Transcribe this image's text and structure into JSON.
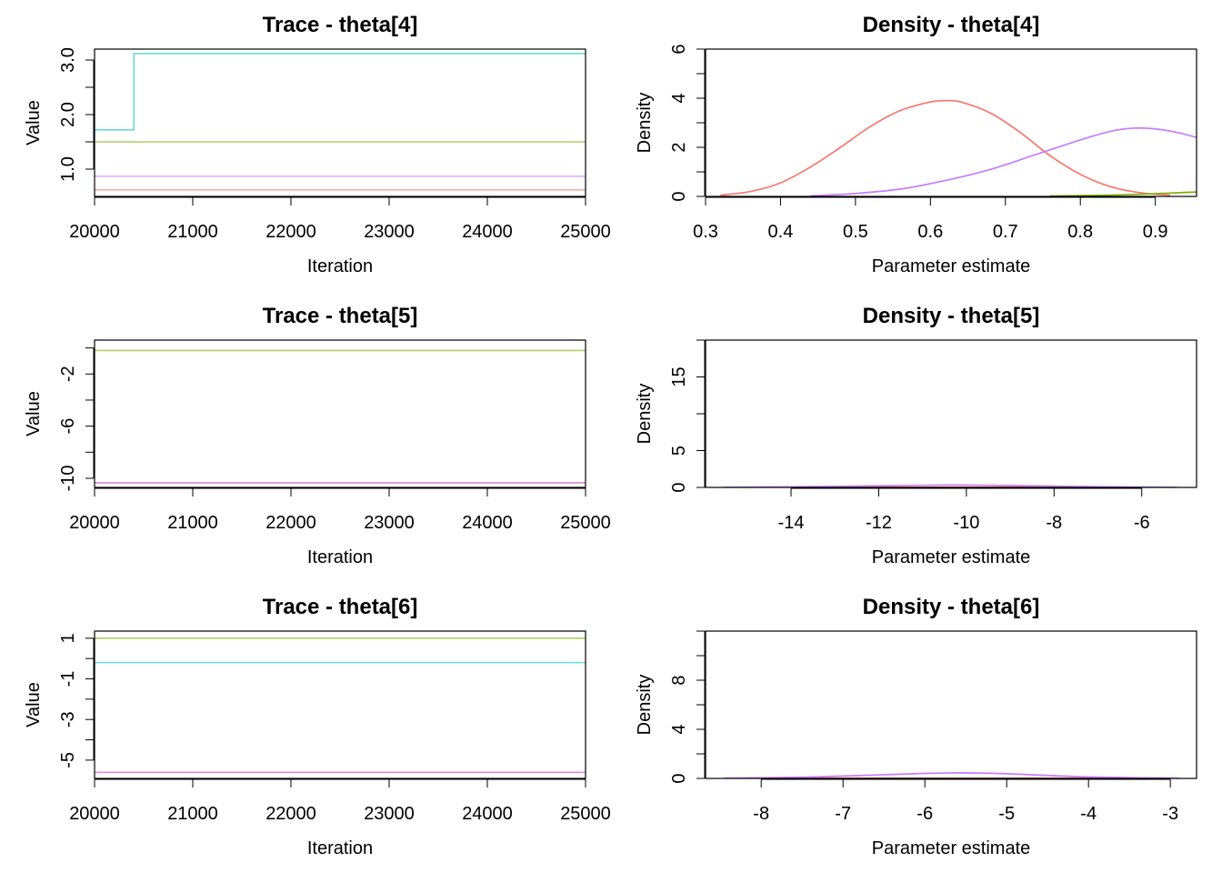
{
  "chart_data": [
    {
      "type": "line",
      "title": "Trace - theta[4]",
      "xlabel": "Iteration",
      "ylabel": "Value",
      "xlim": [
        20000,
        25000
      ],
      "ylim": [
        0.5,
        3.2
      ],
      "xticks": [
        20000,
        21000,
        22000,
        23000,
        24000,
        25000
      ],
      "xticklabels": [
        "20000",
        "21000",
        "22000",
        "23000",
        "24000",
        "25000"
      ],
      "yticks": [
        1.0,
        1.5,
        2.0,
        2.5,
        3.0
      ],
      "yticklabels": [
        "1.0",
        "",
        "2.0",
        "",
        "3.0"
      ],
      "series": [
        {
          "color": "#F8766D",
          "x": [
            20000,
            25000
          ],
          "y": [
            0.62,
            0.62
          ]
        },
        {
          "color": "#C77CFF",
          "x": [
            20000,
            25000
          ],
          "y": [
            0.87,
            0.87
          ]
        },
        {
          "color": "#7CAE00",
          "x": [
            20000,
            25000
          ],
          "y": [
            1.5,
            1.5
          ]
        },
        {
          "color": "#00BFC4",
          "x": [
            20000,
            20400,
            20400,
            25000
          ],
          "y": [
            1.72,
            1.72,
            3.12,
            3.12
          ]
        }
      ]
    },
    {
      "type": "line",
      "title": "Density - theta[4]",
      "xlabel": "Parameter estimate",
      "ylabel": "Density",
      "xlim": [
        0.3,
        0.955
      ],
      "ylim": [
        0,
        6
      ],
      "xticks": [
        0.3,
        0.4,
        0.5,
        0.6,
        0.7,
        0.8,
        0.9
      ],
      "xticklabels": [
        "0.3",
        "0.4",
        "0.5",
        "0.6",
        "0.7",
        "0.8",
        "0.9"
      ],
      "yticks": [
        0,
        1,
        2,
        3,
        4,
        5,
        6
      ],
      "yticklabels": [
        "0",
        "",
        "2",
        "",
        "4",
        "",
        "6"
      ],
      "series": [
        {
          "color": "#F8766D",
          "x": [
            0.32,
            0.36,
            0.4,
            0.44,
            0.48,
            0.52,
            0.56,
            0.6,
            0.62,
            0.64,
            0.68,
            0.72,
            0.76,
            0.8,
            0.84,
            0.88,
            0.92
          ],
          "y": [
            0.05,
            0.2,
            0.55,
            1.2,
            2.0,
            2.85,
            3.5,
            3.85,
            3.9,
            3.85,
            3.4,
            2.6,
            1.65,
            0.9,
            0.4,
            0.15,
            0.05
          ]
        },
        {
          "color": "#C77CFF",
          "x": [
            0.44,
            0.5,
            0.56,
            0.62,
            0.68,
            0.74,
            0.8,
            0.84,
            0.87,
            0.9,
            0.93,
            0.955
          ],
          "y": [
            0.02,
            0.12,
            0.3,
            0.65,
            1.1,
            1.7,
            2.3,
            2.65,
            2.78,
            2.75,
            2.6,
            2.4
          ]
        },
        {
          "color": "#7CAE00",
          "x": [
            0.76,
            0.85,
            0.955
          ],
          "y": [
            0.02,
            0.06,
            0.18
          ]
        }
      ]
    },
    {
      "type": "line",
      "title": "Trace - theta[5]",
      "xlabel": "Iteration",
      "ylabel": "Value",
      "xlim": [
        20000,
        25000
      ],
      "ylim": [
        -10.7,
        0.6
      ],
      "xticks": [
        20000,
        21000,
        22000,
        23000,
        24000,
        25000
      ],
      "xticklabels": [
        "20000",
        "21000",
        "22000",
        "23000",
        "24000",
        "25000"
      ],
      "yticks": [
        -10,
        -8,
        -6,
        -4,
        -2,
        0
      ],
      "yticklabels": [
        "-10",
        "",
        "-6",
        "",
        "-2",
        ""
      ],
      "series": [
        {
          "color": "#F8766D",
          "x": [
            20000,
            25000
          ],
          "y": [
            -10.35,
            -10.35
          ]
        },
        {
          "color": "#C77CFF",
          "x": [
            20000,
            25000
          ],
          "y": [
            -10.35,
            -10.35
          ]
        },
        {
          "color": "#7CAE00",
          "x": [
            20000,
            25000
          ],
          "y": [
            -0.2,
            -0.2
          ]
        },
        {
          "color": "#00BFC4",
          "x": [
            20000,
            25000
          ],
          "y": [
            0.65,
            0.65
          ]
        }
      ]
    },
    {
      "type": "line",
      "title": "Density - theta[5]",
      "xlabel": "Parameter estimate",
      "ylabel": "Density",
      "xlim": [
        -15.95,
        -4.75
      ],
      "ylim": [
        0,
        20
      ],
      "xticks": [
        -14,
        -12,
        -10,
        -8,
        -6
      ],
      "xticklabels": [
        "-14",
        "-12",
        "-10",
        "-8",
        "-6"
      ],
      "yticks": [
        0,
        5,
        10,
        15,
        20
      ],
      "yticklabels": [
        "0",
        "5",
        "",
        "15",
        ""
      ],
      "series": [
        {
          "color": "#F8766D",
          "x": [
            -15.55,
            -5.2
          ],
          "y": [
            0.02,
            0.02
          ]
        },
        {
          "color": "#C77CFF",
          "x": [
            -15.55,
            -14,
            -12,
            -10.4,
            -9,
            -7,
            -5.2
          ],
          "y": [
            0.02,
            0.08,
            0.22,
            0.32,
            0.25,
            0.1,
            0.02
          ]
        }
      ]
    },
    {
      "type": "line",
      "title": "Trace - theta[6]",
      "xlabel": "Iteration",
      "ylabel": "Value",
      "xlim": [
        20000,
        25000
      ],
      "ylim": [
        -5.9,
        1.35
      ],
      "xticks": [
        20000,
        21000,
        22000,
        23000,
        24000,
        25000
      ],
      "xticklabels": [
        "20000",
        "21000",
        "22000",
        "23000",
        "24000",
        "25000"
      ],
      "yticks": [
        -5,
        -4,
        -3,
        -2,
        -1,
        0,
        1
      ],
      "yticklabels": [
        "-5",
        "",
        "-3",
        "",
        "-1",
        "",
        "1"
      ],
      "series": [
        {
          "color": "#F8766D",
          "x": [
            20000,
            25000
          ],
          "y": [
            -5.6,
            -5.6
          ]
        },
        {
          "color": "#C77CFF",
          "x": [
            20000,
            25000
          ],
          "y": [
            -5.6,
            -5.6
          ]
        },
        {
          "color": "#00BFC4",
          "x": [
            20000,
            25000
          ],
          "y": [
            -0.2,
            -0.2
          ]
        },
        {
          "color": "#7CAE00",
          "x": [
            20000,
            25000
          ],
          "y": [
            1.0,
            1.0
          ]
        }
      ]
    },
    {
      "type": "line",
      "title": "Density - theta[6]",
      "xlabel": "Parameter estimate",
      "ylabel": "Density",
      "xlim": [
        -8.68,
        -2.68
      ],
      "ylim": [
        0,
        12
      ],
      "xticks": [
        -8,
        -7,
        -6,
        -5,
        -4,
        -3
      ],
      "xticklabels": [
        "-8",
        "-7",
        "-6",
        "-5",
        "-4",
        "-3"
      ],
      "yticks": [
        0,
        2,
        4,
        6,
        8,
        10,
        12
      ],
      "yticklabels": [
        "0",
        "",
        "4",
        "",
        "8",
        "",
        ""
      ],
      "series": [
        {
          "color": "#F8766D",
          "x": [
            -8.45,
            -2.9
          ],
          "y": [
            0.02,
            0.02
          ]
        },
        {
          "color": "#C77CFF",
          "x": [
            -8.45,
            -7.5,
            -6.5,
            -5.7,
            -5.0,
            -4.0,
            -2.9
          ],
          "y": [
            0.02,
            0.1,
            0.3,
            0.45,
            0.38,
            0.12,
            0.02
          ]
        }
      ]
    }
  ]
}
